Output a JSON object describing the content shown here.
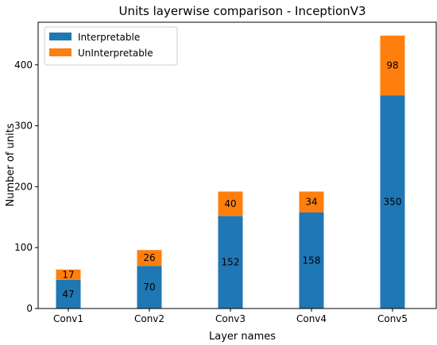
{
  "chart_data": {
    "type": "bar",
    "stacked": true,
    "title": "Units layerwise comparison - InceptionV3",
    "xlabel": "Layer names",
    "ylabel": "Number of units",
    "categories": [
      "Conv1",
      "Conv2",
      "Conv3",
      "Conv4",
      "Conv5"
    ],
    "series": [
      {
        "name": "Interpretable",
        "values": [
          47,
          70,
          152,
          158,
          350
        ],
        "color": "#1f77b4"
      },
      {
        "name": "UnInterpretable",
        "values": [
          17,
          26,
          40,
          34,
          98
        ],
        "color": "#ff7f0e"
      }
    ],
    "ylim": [
      0,
      470
    ],
    "yticks": [
      0,
      100,
      200,
      300,
      400
    ],
    "legend": "top-left",
    "grid": false
  }
}
